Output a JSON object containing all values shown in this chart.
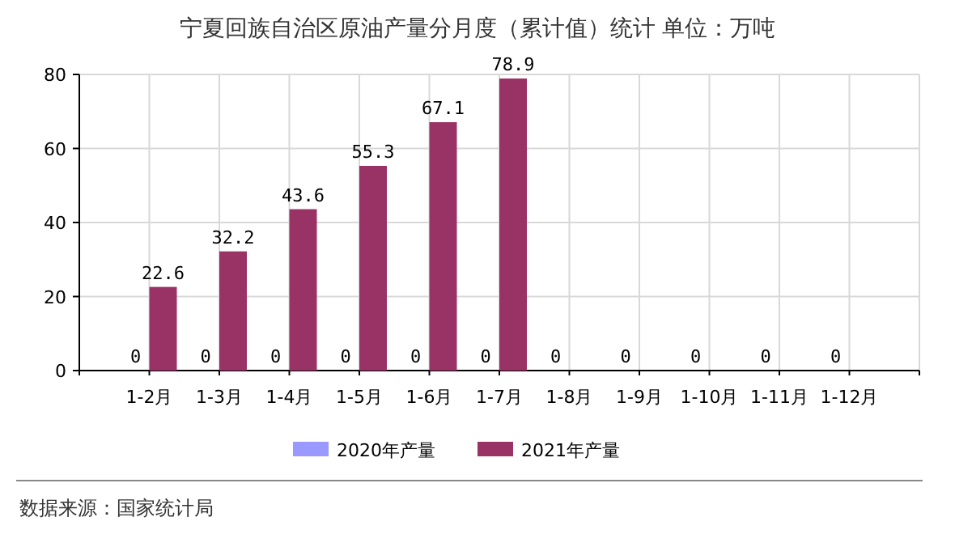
{
  "chart_data": {
    "type": "bar",
    "title": "宁夏回族自治区原油产量分月度（累计值）统计 单位：万吨",
    "categories": [
      "1-2月",
      "1-3月",
      "1-4月",
      "1-5月",
      "1-6月",
      "1-7月",
      "1-8月",
      "1-9月",
      "1-10月",
      "1-11月",
      "1-12月"
    ],
    "series": [
      {
        "name": "2020年产量",
        "color": "#9999ff",
        "values": [
          0,
          0,
          0,
          0,
          0,
          0,
          0,
          0,
          0,
          0,
          0
        ]
      },
      {
        "name": "2021年产量",
        "color": "#993366",
        "values": [
          22.6,
          32.2,
          43.6,
          55.3,
          67.1,
          78.9,
          null,
          null,
          null,
          null,
          null
        ]
      }
    ],
    "ylim": [
      0,
      80
    ],
    "yticks": [
      0,
      20,
      40,
      60,
      80
    ],
    "grid": true,
    "legend": "bottom",
    "data_labels": true,
    "annotations": [
      "数据来源：国家统计局"
    ]
  }
}
